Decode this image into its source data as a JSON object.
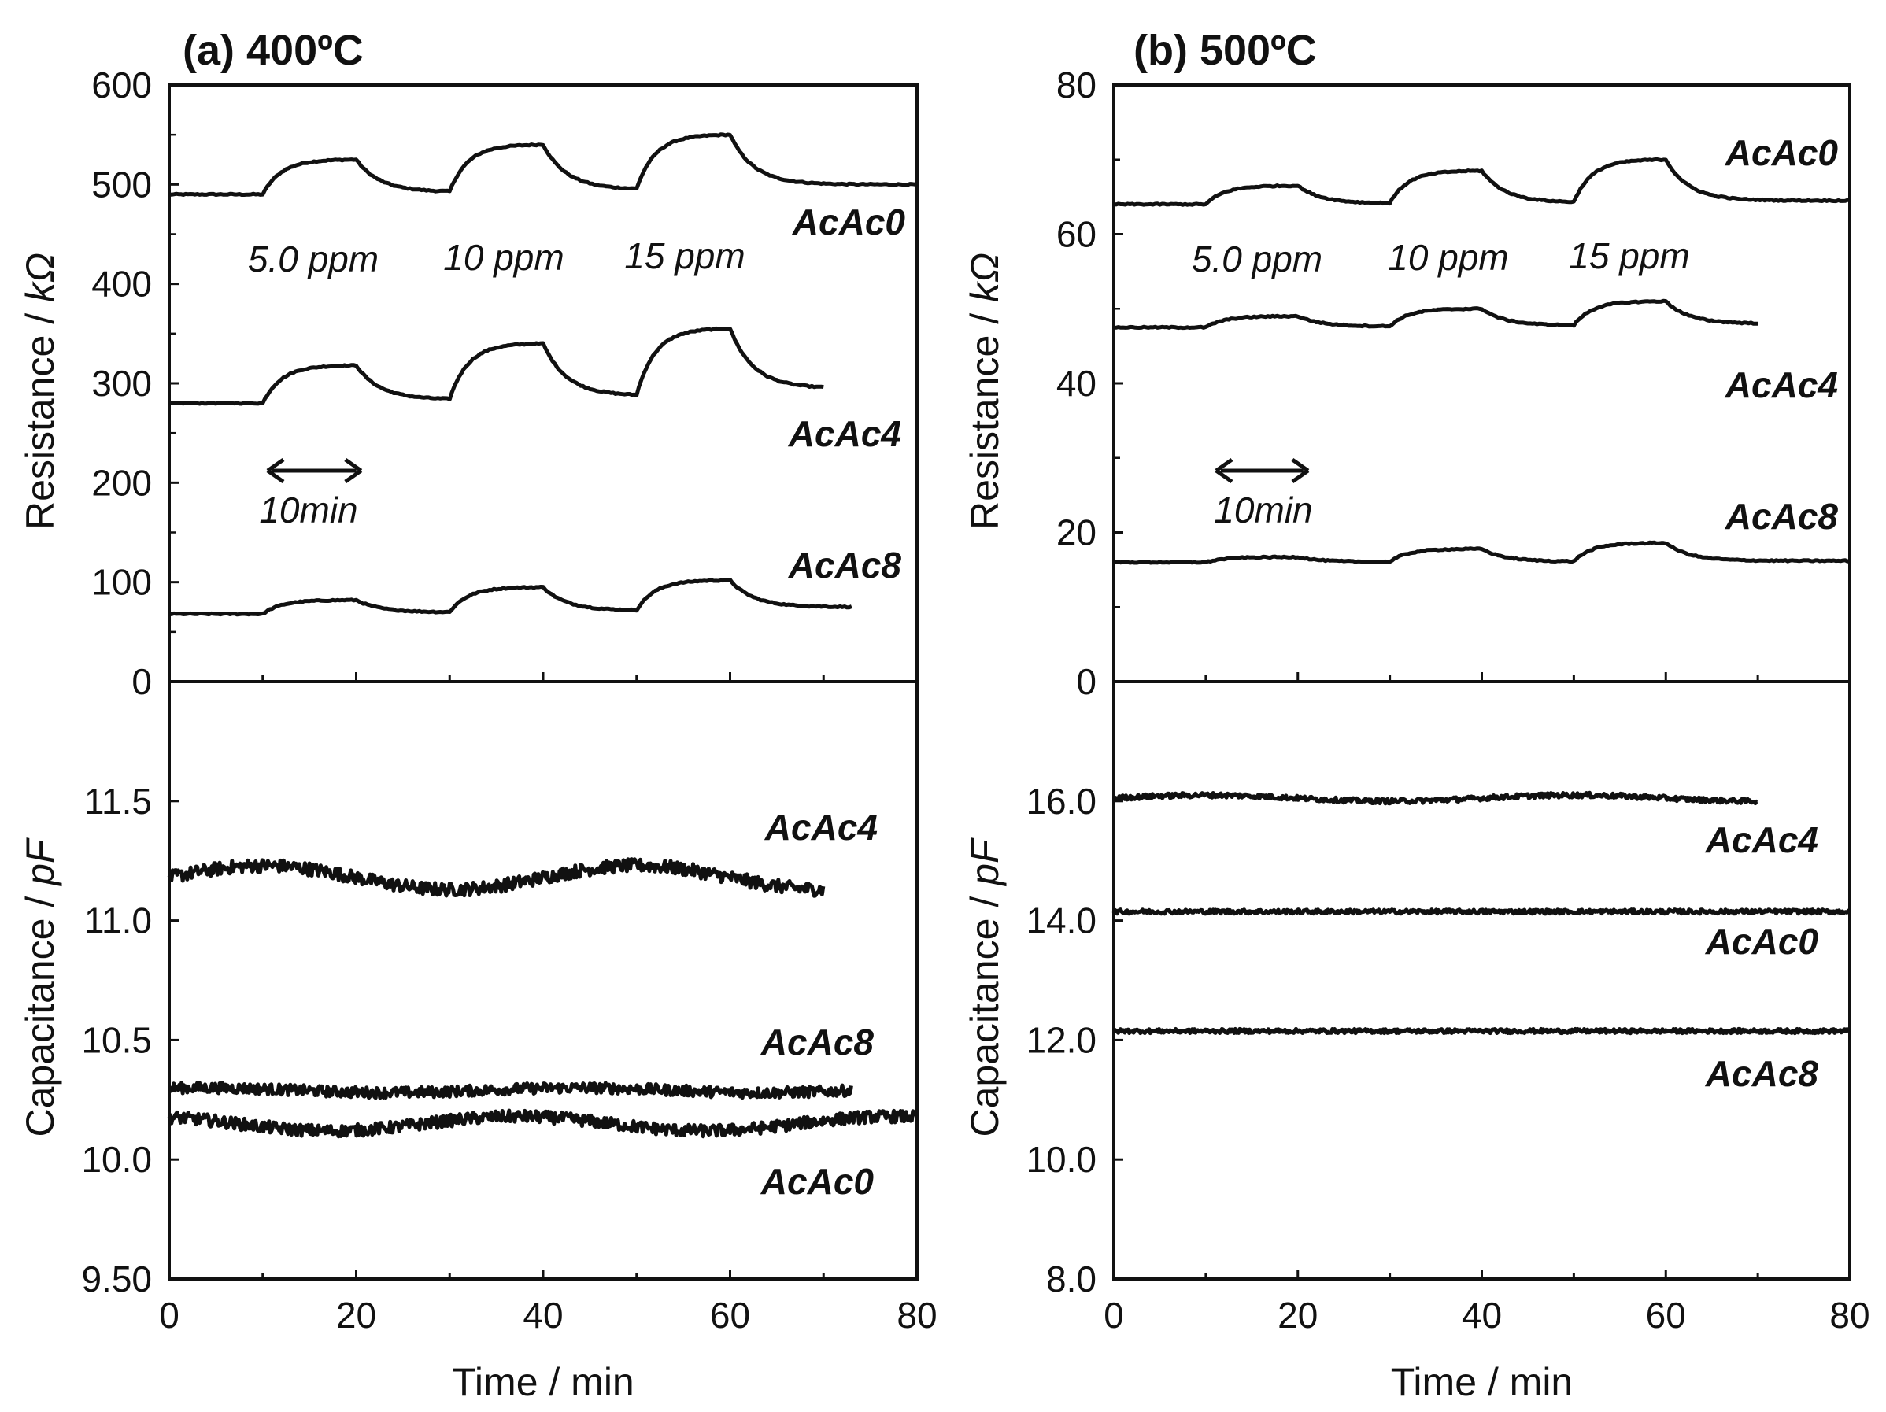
{
  "chart_data": [
    {
      "id": "a",
      "type": "line",
      "title": "(a) 400ºC",
      "xlabel": "Time / min",
      "xlim": [
        0,
        80
      ],
      "xticks": [
        "0",
        "20",
        "40",
        "60",
        "80"
      ],
      "top": {
        "ylabel_main": "Resistance / ",
        "ylabel_unit": "kΩ",
        "ylim": [
          0,
          600
        ],
        "yticks": [
          "0",
          "100",
          "200",
          "300",
          "400",
          "500",
          "600"
        ],
        "series": [
          {
            "name": "AcAc0",
            "base": 490,
            "levels": [
              525,
              540,
              550
            ],
            "end": 500,
            "tmax": 80,
            "label": "AcAc0"
          },
          {
            "name": "AcAc4",
            "base": 280,
            "levels": [
              318,
              340,
              355
            ],
            "end": 295,
            "tmax": 70,
            "label": "AcAc4"
          },
          {
            "name": "AcAc8",
            "base": 68,
            "levels": [
              82,
              95,
              102
            ],
            "end": 75,
            "tmax": 73,
            "label": "AcAc8"
          }
        ],
        "annotations": {
          "concentrations": [
            "5.0 ppm",
            "10 ppm",
            "15 ppm"
          ],
          "scale_bar": "10min"
        }
      },
      "bottom": {
        "ylabel_main": "Capacitance / ",
        "ylabel_unit": "pF",
        "ylim": [
          9.5,
          12.0
        ],
        "yticks": [
          "9.50",
          "10.0",
          "10.5",
          "11.0",
          "11.5"
        ],
        "series": [
          {
            "name": "AcAc4",
            "base": 11.18,
            "wiggle": 0.05,
            "noise": 0.055,
            "tmax": 70,
            "label": "AcAc4"
          },
          {
            "name": "AcAc8",
            "base": 10.29,
            "wiggle": 0.01,
            "noise": 0.045,
            "tmax": 73,
            "label": "AcAc8"
          },
          {
            "name": "AcAc0",
            "base": 10.15,
            "wiggle": 0.03,
            "noise": 0.05,
            "tmax": 80,
            "label": "AcAc0"
          }
        ]
      }
    },
    {
      "id": "b",
      "type": "line",
      "title": "(b) 500ºC",
      "xlabel": "Time / min",
      "xlim": [
        0,
        80
      ],
      "xticks": [
        "0",
        "20",
        "40",
        "60",
        "80"
      ],
      "top": {
        "ylabel_main": "Resistance / ",
        "ylabel_unit": "kΩ",
        "ylim": [
          0,
          80
        ],
        "yticks": [
          "0",
          "20",
          "40",
          "60",
          "80"
        ],
        "series": [
          {
            "name": "AcAc0",
            "base": 64,
            "levels": [
              66.5,
              68.5,
              70
            ],
            "end": 64.5,
            "tmax": 80,
            "label": "AcAc0"
          },
          {
            "name": "AcAc4",
            "base": 47.5,
            "levels": [
              49,
              50,
              51
            ],
            "end": 48,
            "tmax": 70,
            "label": "AcAc4"
          },
          {
            "name": "AcAc8",
            "base": 16,
            "levels": [
              16.7,
              17.8,
              18.6
            ],
            "end": 16.2,
            "tmax": 80,
            "label": "AcAc8"
          }
        ],
        "annotations": {
          "concentrations": [
            "5.0 ppm",
            "10 ppm",
            "15 ppm"
          ],
          "scale_bar": "10min"
        }
      },
      "bottom": {
        "ylabel_main": "Capacitance / ",
        "ylabel_unit": "pF",
        "ylim": [
          8.0,
          18.0
        ],
        "yticks": [
          "8.0",
          "10.0",
          "12.0",
          "14.0",
          "16.0"
        ],
        "series": [
          {
            "name": "AcAc4",
            "base": 16.05,
            "wiggle": 0.05,
            "noise": 0.08,
            "tmax": 70,
            "label": "AcAc4"
          },
          {
            "name": "AcAc0",
            "base": 14.15,
            "wiggle": 0.0,
            "noise": 0.07,
            "tmax": 80,
            "label": "AcAc0"
          },
          {
            "name": "AcAc8",
            "base": 12.15,
            "wiggle": 0.0,
            "noise": 0.07,
            "tmax": 80,
            "label": "AcAc8"
          }
        ]
      }
    }
  ]
}
